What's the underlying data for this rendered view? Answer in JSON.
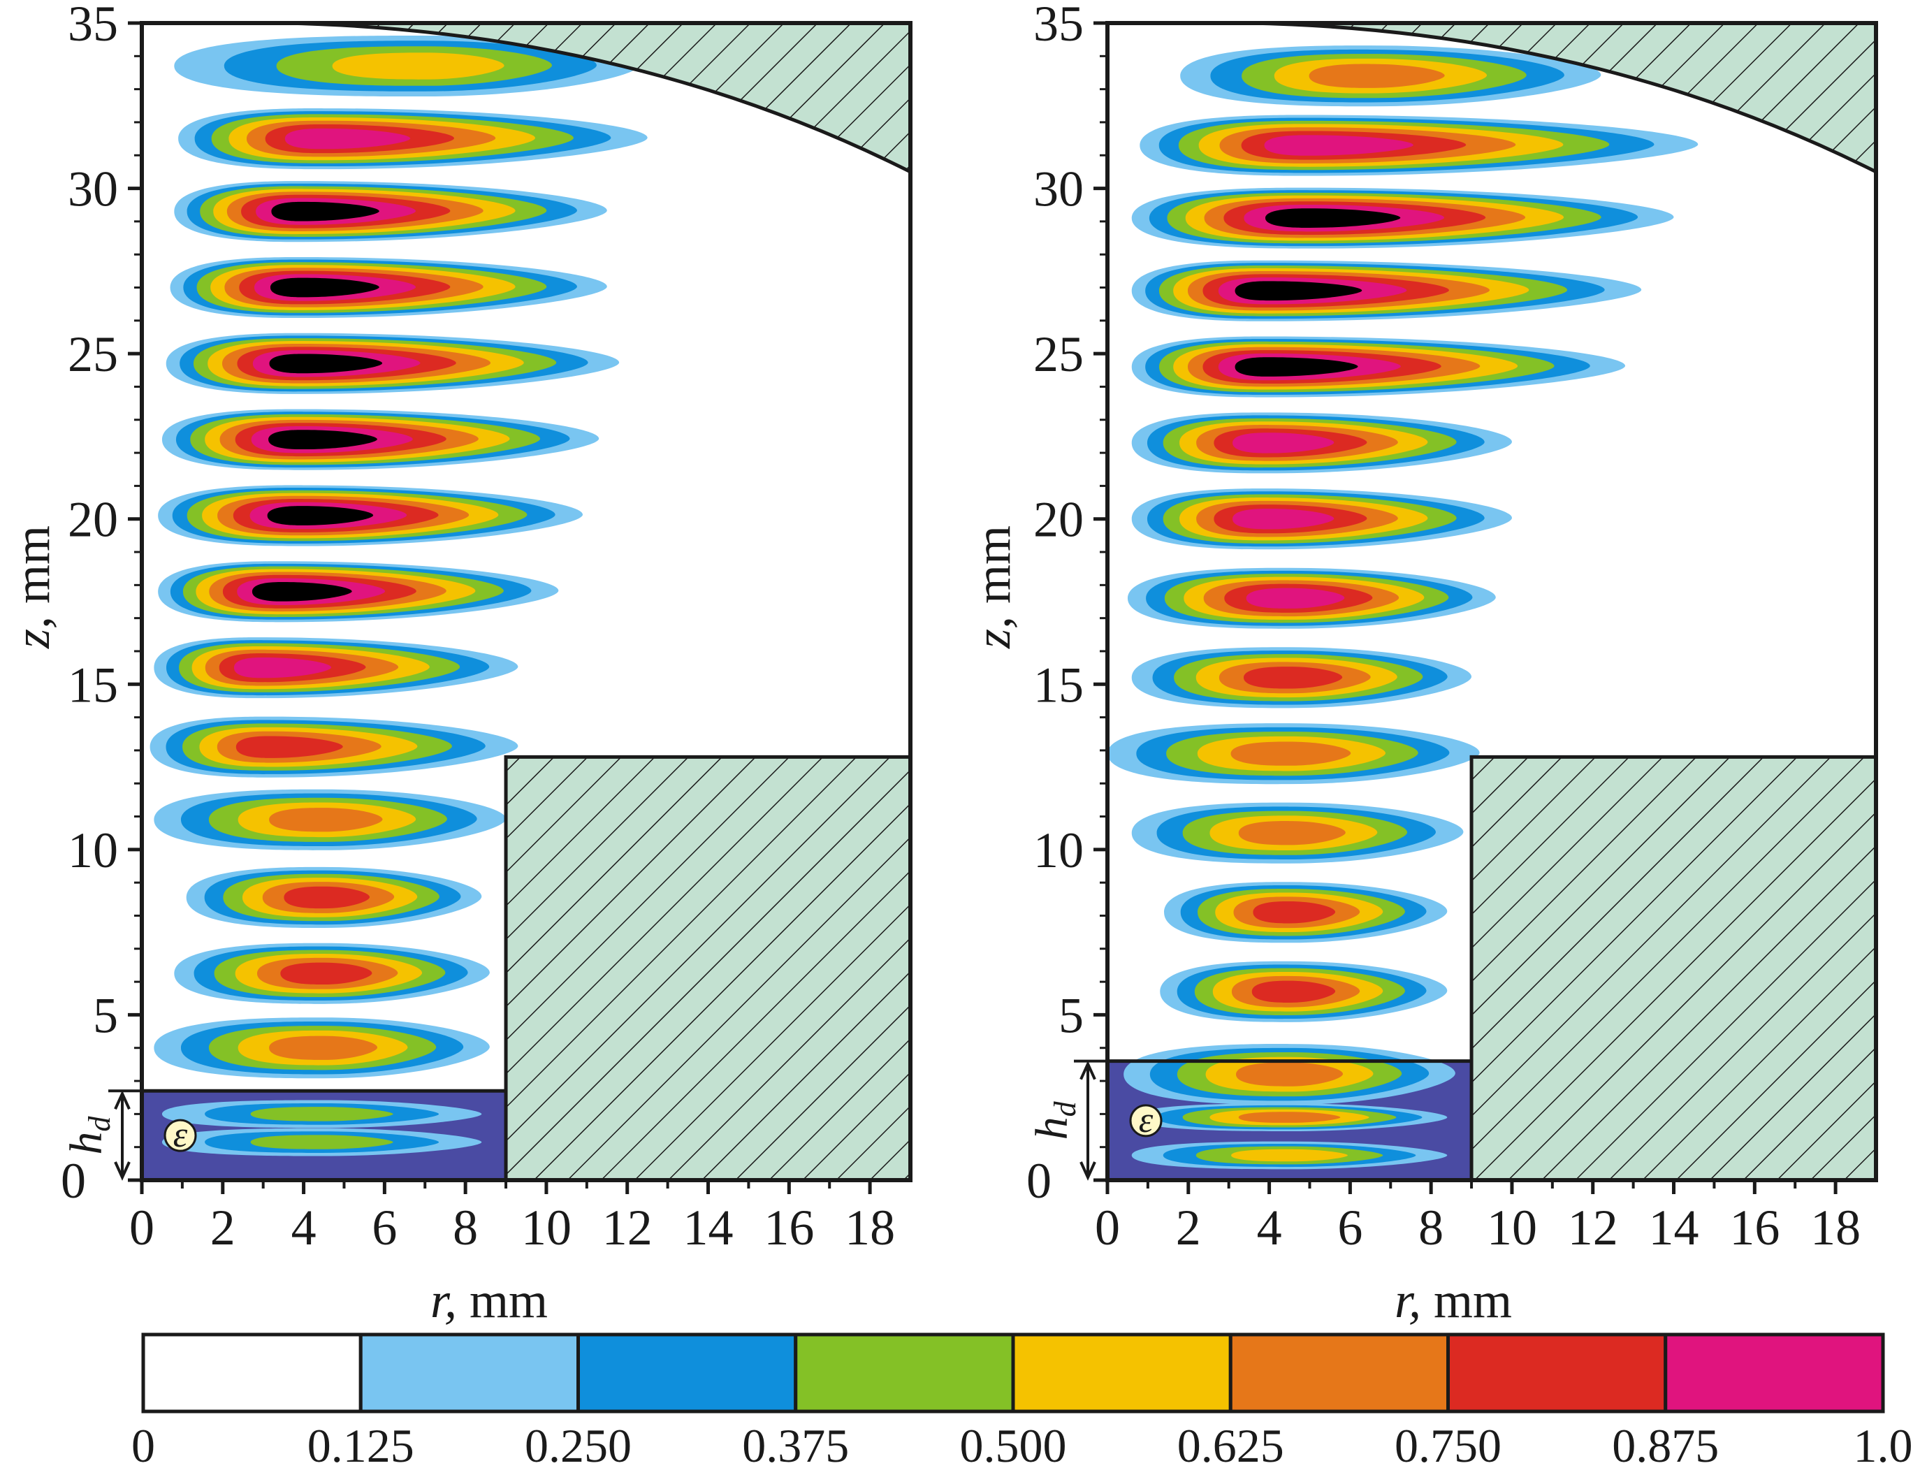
{
  "chart_data": [
    {
      "type": "heatmap",
      "panel": "left",
      "xlabel_var": "r,",
      "xlabel_unit": "mm",
      "ylabel_var": "z,",
      "ylabel_unit": "mm",
      "xlim": [
        0,
        19
      ],
      "ylim": [
        0,
        35
      ],
      "xticks": [
        "0",
        "2",
        "4",
        "6",
        "8",
        "10",
        "12",
        "14",
        "16",
        "18"
      ],
      "yticks": [
        "0",
        "5",
        "10",
        "15",
        "20",
        "25",
        "30",
        "35"
      ],
      "dielectric_label": "ε",
      "hd_label": "h",
      "hd_sub": "d",
      "dielectric": {
        "r_max": 9.0,
        "z_max": 2.7
      },
      "wall_step": {
        "r_start": 9.0,
        "z_top": 12.8
      },
      "cap_curve": {
        "r_start": 3.5,
        "z_start": 35.0,
        "z_end_at_r19": 30.5
      },
      "modes": [
        {
          "z": 1.15,
          "r_min": 0.5,
          "r_max": 8.4,
          "peak": 0.37,
          "bottom": true
        },
        {
          "z": 2.0,
          "r_min": 0.5,
          "r_max": 8.4,
          "peak": 0.37,
          "bottom": true
        },
        {
          "z": 4.0,
          "r_min": 0.3,
          "r_max": 8.6,
          "peak": 0.6,
          "c": 4.5
        },
        {
          "z": 6.25,
          "r_min": 0.8,
          "r_max": 8.6,
          "peak": 0.7,
          "c": 4.5
        },
        {
          "z": 8.55,
          "r_min": 1.1,
          "r_max": 8.4,
          "peak": 0.68,
          "c": 4.5
        },
        {
          "z": 10.9,
          "r_min": 0.3,
          "r_max": 9.0,
          "peak": 0.6,
          "c": 4.5
        },
        {
          "z": 13.1,
          "r_min": 0.2,
          "r_max": 9.3,
          "peak": 0.65,
          "c": 3.2
        },
        {
          "z": 15.5,
          "r_min": 0.3,
          "r_max": 9.3,
          "peak": 0.8,
          "c": 3.0
        },
        {
          "z": 17.8,
          "r_min": 0.4,
          "r_max": 10.3,
          "peak": 0.88,
          "c": 3.5
        },
        {
          "z": 20.1,
          "r_min": 0.4,
          "r_max": 10.9,
          "peak": 0.9,
          "c": 4.0
        },
        {
          "z": 22.4,
          "r_min": 0.5,
          "r_max": 11.3,
          "peak": 0.92,
          "c": 4.0
        },
        {
          "z": 24.7,
          "r_min": 0.6,
          "r_max": 11.8,
          "peak": 0.92,
          "c": 4.0
        },
        {
          "z": 27.0,
          "r_min": 0.7,
          "r_max": 11.5,
          "peak": 0.93,
          "c": 4.0
        },
        {
          "z": 29.3,
          "r_min": 0.8,
          "r_max": 11.5,
          "peak": 0.95,
          "c": 4.0
        },
        {
          "z": 31.5,
          "r_min": 0.9,
          "r_max": 12.5,
          "peak": 0.85,
          "c": 4.5
        },
        {
          "z": 33.7,
          "r_min": 0.8,
          "r_max": 12.3,
          "peak": 0.5,
          "c": 7.0
        }
      ]
    },
    {
      "type": "heatmap",
      "panel": "right",
      "xlabel_var": "r,",
      "xlabel_unit": "mm",
      "ylabel_var": "z,",
      "ylabel_unit": "mm",
      "xlim": [
        0,
        19
      ],
      "ylim": [
        0,
        35
      ],
      "xticks": [
        "0",
        "2",
        "4",
        "6",
        "8",
        "10",
        "12",
        "14",
        "16",
        "18"
      ],
      "yticks": [
        "0",
        "5",
        "10",
        "15",
        "20",
        "25",
        "30",
        "35"
      ],
      "dielectric_label": "ε",
      "hd_label": "h",
      "hd_sub": "d",
      "dielectric": {
        "r_max": 9.0,
        "z_max": 3.6
      },
      "wall_step": {
        "r_start": 9.0,
        "z_top": 12.8
      },
      "cap_curve": {
        "r_start": 3.5,
        "z_start": 35.0,
        "z_end_at_r19": 30.5
      },
      "modes": [
        {
          "z": 0.75,
          "r_min": 0.6,
          "r_max": 8.4,
          "peak": 0.5,
          "bottom": true
        },
        {
          "z": 1.9,
          "r_min": 0.6,
          "r_max": 8.4,
          "peak": 0.52,
          "bottom": true
        },
        {
          "z": 3.2,
          "r_min": 0.4,
          "r_max": 8.6,
          "peak": 0.52,
          "c": 4.5
        },
        {
          "z": 5.7,
          "r_min": 1.3,
          "r_max": 8.4,
          "peak": 0.65,
          "c": 4.5
        },
        {
          "z": 8.1,
          "r_min": 1.4,
          "r_max": 8.4,
          "peak": 0.66,
          "c": 4.5
        },
        {
          "z": 10.5,
          "r_min": 0.6,
          "r_max": 8.8,
          "peak": 0.52,
          "c": 4.5
        },
        {
          "z": 12.9,
          "r_min": 0.0,
          "r_max": 9.2,
          "peak": 0.52,
          "c": 4.5
        },
        {
          "z": 15.2,
          "r_min": 0.6,
          "r_max": 9.0,
          "peak": 0.64,
          "c": 4.5
        },
        {
          "z": 17.6,
          "r_min": 0.5,
          "r_max": 9.6,
          "peak": 0.78,
          "c": 4.5
        },
        {
          "z": 20.0,
          "r_min": 0.6,
          "r_max": 10.0,
          "peak": 0.84,
          "c": 4.0
        },
        {
          "z": 22.3,
          "r_min": 0.6,
          "r_max": 10.0,
          "peak": 0.86,
          "c": 4.0
        },
        {
          "z": 24.6,
          "r_min": 0.6,
          "r_max": 12.8,
          "peak": 0.92,
          "c": 4.0
        },
        {
          "z": 26.9,
          "r_min": 0.6,
          "r_max": 13.2,
          "peak": 0.92,
          "c": 4.0
        },
        {
          "z": 29.1,
          "r_min": 0.6,
          "r_max": 14.0,
          "peak": 0.93,
          "c": 5.0
        },
        {
          "z": 31.3,
          "r_min": 0.8,
          "r_max": 14.6,
          "peak": 0.86,
          "c": 5.0
        },
        {
          "z": 33.4,
          "r_min": 1.8,
          "r_max": 12.2,
          "peak": 0.55,
          "c": 6.5
        }
      ]
    }
  ],
  "colorbar": {
    "ticks": [
      "0",
      "0.125",
      "0.250",
      "0.375",
      "0.500",
      "0.625",
      "0.750",
      "0.875",
      "1.0"
    ],
    "colors": [
      "#ffffff",
      "#79c5f1",
      "#0f8fdc",
      "#84c126",
      "#f5c200",
      "#e67719",
      "#dc2a22",
      "#e0147e"
    ]
  },
  "colors": {
    "dielectric_fill": "#4a4ba3",
    "wall_fill": "#c3e1d1",
    "hatch": "#1a1a1a"
  }
}
